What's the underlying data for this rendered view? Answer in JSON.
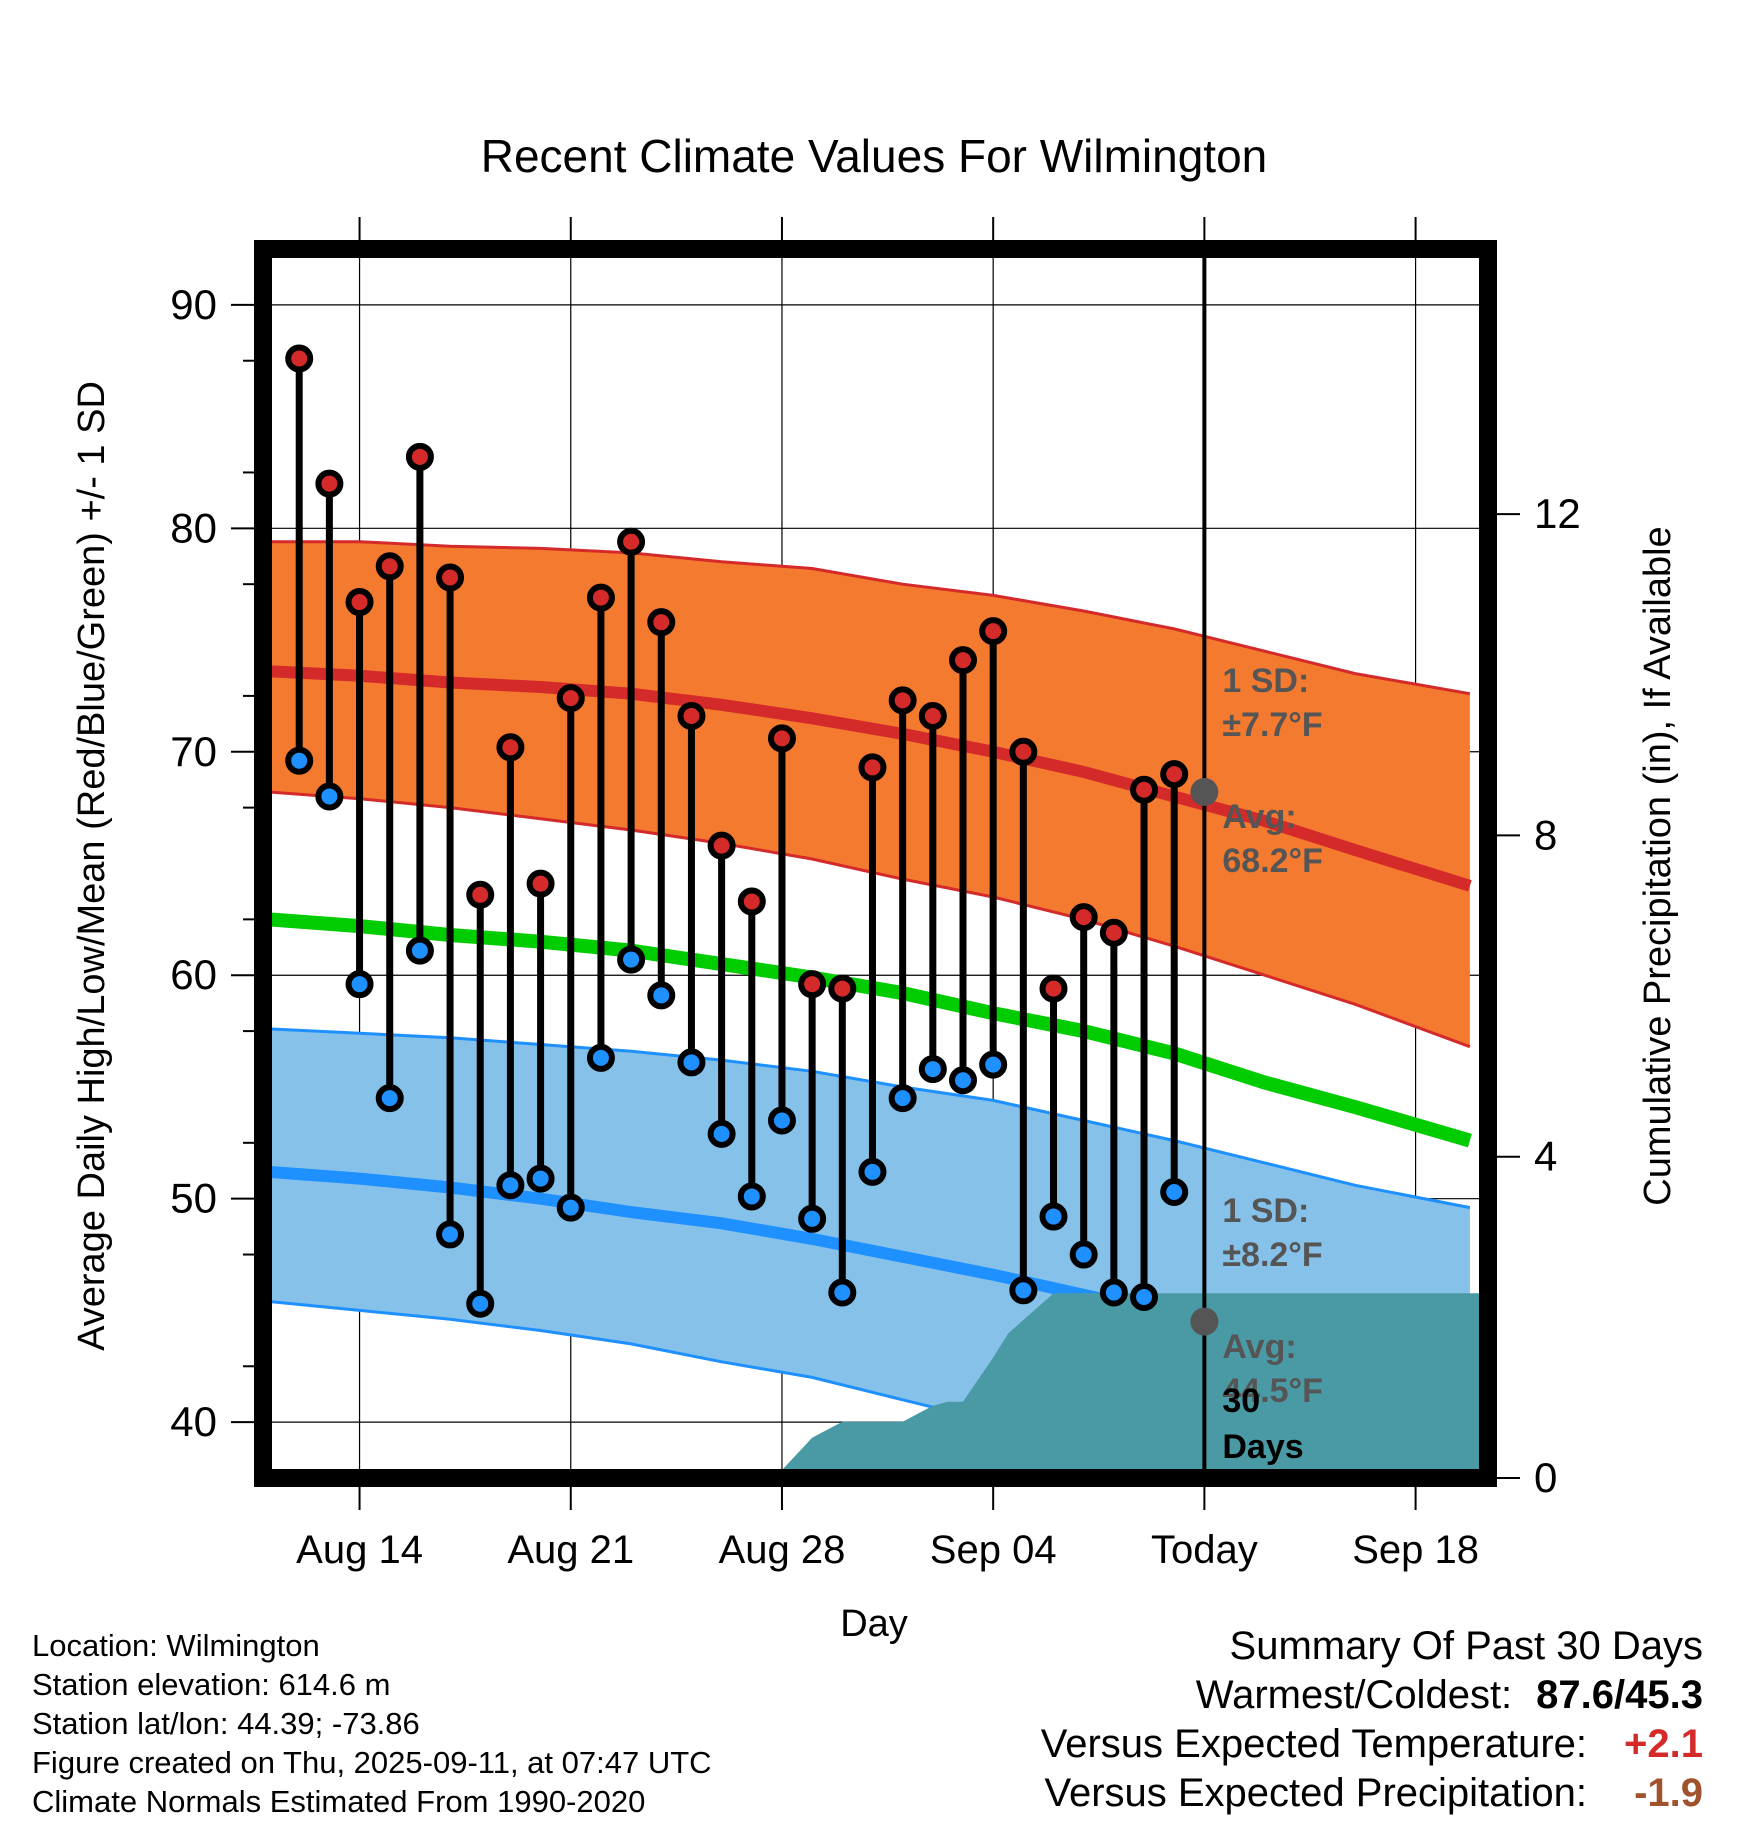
{
  "chart_data": {
    "type": "line",
    "title": "Recent Climate Values For Wilmington",
    "xlabel": "Day",
    "ylabel": "Average Daily High/Low/Mean (Red/Blue/Green) +/- 1 SD",
    "y2label": "Cumulative Precipitation (in), If Available",
    "ylim": [
      37.5,
      92.5
    ],
    "y2lim": [
      0,
      15.3
    ],
    "yticks": [
      40,
      50,
      60,
      70,
      80,
      90
    ],
    "y2ticks": [
      0,
      4,
      8,
      12
    ],
    "xlim": [
      -3.2,
      37.4
    ],
    "xticks": [
      {
        "day": 0,
        "label": "Aug 14"
      },
      {
        "day": 7,
        "label": "Aug 21"
      },
      {
        "day": 14,
        "label": "Aug 28"
      },
      {
        "day": 21,
        "label": "Sep 04"
      },
      {
        "day": 28,
        "label": "Today"
      },
      {
        "day": 35,
        "label": "Sep 18"
      }
    ],
    "grid": true,
    "today_day": 28,
    "normals_x": [
      -3,
      0,
      3,
      6,
      9,
      12,
      15,
      18,
      21,
      24,
      27,
      30,
      33,
      36.8
    ],
    "normal_high": [
      73.6,
      73.4,
      73.1,
      72.9,
      72.6,
      72.1,
      71.5,
      70.8,
      70.0,
      69.1,
      68.0,
      66.9,
      65.6,
      64.0
    ],
    "normal_high_upper": [
      79.4,
      79.4,
      79.2,
      79.1,
      78.9,
      78.5,
      78.2,
      77.5,
      77.0,
      76.3,
      75.5,
      74.5,
      73.5,
      72.6
    ],
    "normal_high_lower": [
      68.2,
      67.9,
      67.5,
      67.0,
      66.5,
      65.9,
      65.2,
      64.3,
      63.5,
      62.5,
      61.3,
      60.0,
      58.7,
      56.8
    ],
    "normal_mean": [
      62.5,
      62.2,
      61.8,
      61.5,
      61.1,
      60.5,
      59.9,
      59.2,
      58.3,
      57.5,
      56.5,
      55.2,
      54.1,
      52.6
    ],
    "normal_low": [
      51.2,
      50.9,
      50.5,
      50.0,
      49.4,
      48.9,
      48.2,
      47.4,
      46.6,
      45.7,
      44.8,
      43.7,
      42.6,
      41.0
    ],
    "normal_low_upper": [
      57.6,
      57.4,
      57.2,
      56.9,
      56.6,
      56.2,
      55.7,
      55.0,
      54.4,
      53.5,
      52.6,
      51.6,
      50.6,
      49.6
    ],
    "normal_low_lower": [
      45.4,
      45.0,
      44.6,
      44.1,
      43.5,
      42.7,
      42.0,
      41.0,
      40.0,
      38.8,
      37.5,
      36.3,
      35.0,
      33.5
    ],
    "series": [
      {
        "name": "High",
        "color": "#d42a2a",
        "values": [
          87.6,
          82.0,
          76.7,
          78.3,
          83.2,
          77.8,
          63.6,
          70.2,
          64.1,
          72.4,
          76.9,
          79.4,
          75.8,
          71.6,
          65.8,
          63.3,
          70.6,
          59.6,
          59.4,
          69.3,
          72.3,
          71.6,
          74.1,
          75.4,
          70.0,
          59.4,
          62.6,
          61.9,
          68.3,
          69.0
        ]
      },
      {
        "name": "Low",
        "color": "#1e90ff",
        "values": [
          69.6,
          68.0,
          59.6,
          54.5,
          61.1,
          48.4,
          45.3,
          50.6,
          50.9,
          49.6,
          56.3,
          60.7,
          59.1,
          56.1,
          52.9,
          50.1,
          53.5,
          49.1,
          45.8,
          51.2,
          54.5,
          55.8,
          55.3,
          56.0,
          45.9,
          49.2,
          47.5,
          45.8,
          45.6,
          50.3
        ]
      }
    ],
    "series_x_start": -2,
    "precip_x": [
      -3,
      7.5,
      10.5,
      11,
      13.5,
      14,
      15,
      16,
      16.5,
      18,
      19,
      19.5,
      20,
      21,
      21.5,
      23,
      27,
      28,
      37.4
    ],
    "precip_y": [
      0,
      0,
      0,
      0.02,
      0.1,
      0.1,
      0.5,
      0.7,
      0.7,
      0.7,
      0.9,
      0.95,
      0.95,
      1.5,
      1.8,
      2.3,
      2.3,
      2.3,
      2.3
    ],
    "annotations": {
      "high_sd_label": "1 SD:",
      "high_sd_value": "±7.7°F",
      "high_avg_label": "Avg:",
      "high_avg_value": "68.2°F",
      "high_avg": 68.2,
      "low_sd_label": "1 SD:",
      "low_sd_value": "±8.2°F",
      "low_avg_label": "Avg:",
      "low_avg_value": "44.5°F",
      "low_avg": 44.5,
      "days_value": "30",
      "days_label": "Days"
    },
    "colors": {
      "high_band": "#f47a30",
      "high_band_edge": "#d42a2a",
      "high_line": "#d42a2a",
      "mean_line": "#00cc00",
      "low_band": "#85c1e9",
      "low_band_edge": "#1e90ff",
      "low_line": "#1e90ff",
      "precip_fill": "#4a9aa5",
      "avg_marker": "#555555",
      "annotation_text": "#555555"
    }
  },
  "footer": {
    "location": "Location: Wilmington",
    "elevation": "Station elevation: 614.6 m",
    "latlon": "Station lat/lon: 44.39; -73.86",
    "created": "Figure created on Thu, 2025-09-11, at 07:47 UTC",
    "normals": "Climate Normals Estimated From 1990-2020"
  },
  "summary": {
    "title": "Summary Of Past 30 Days",
    "warm_cold_label": "Warmest/Coldest:",
    "warm_cold_value": "87.6/45.3",
    "temp_label": "Versus Expected Temperature:",
    "temp_value": "+2.1",
    "temp_color": "#d42a2a",
    "precip_label": "Versus Expected Precipitation:",
    "precip_value": "-1.9",
    "precip_color": "#a0522d"
  }
}
